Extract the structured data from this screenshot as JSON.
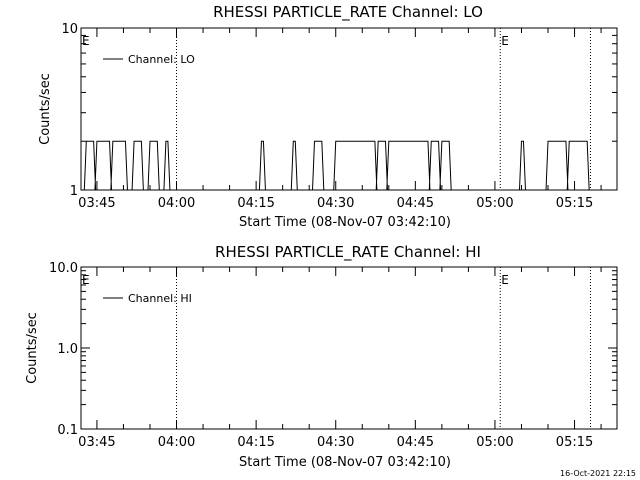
{
  "chart_data": [
    {
      "type": "line",
      "title": "RHESSI PARTICLE_RATE Channel: LO",
      "xlabel": "Start Time (08-Nov-07 03:42:10)",
      "ylabel": "Counts/sec",
      "yscale": "log",
      "ylim": [
        1,
        10
      ],
      "xlim": [
        "03:42",
        "05:23"
      ],
      "xticks": [
        "03:45",
        "04:00",
        "04:15",
        "04:30",
        "04:45",
        "05:00",
        "05:15"
      ],
      "yticks": [
        "1",
        "10"
      ],
      "legend": "top-left",
      "series": [
        {
          "name": "Channel: LO",
          "segments": [
            {
              "start": "03:43",
              "end": "03:44",
              "value": 2
            },
            {
              "start": "03:45",
              "end": "03:47",
              "value": 2
            },
            {
              "start": "03:48",
              "end": "03:50",
              "value": 2
            },
            {
              "start": "03:52",
              "end": "03:53",
              "value": 2
            },
            {
              "start": "03:55",
              "end": "03:56",
              "value": 2
            },
            {
              "start": "03:58",
              "end": "03:58",
              "value": 2
            },
            {
              "start": "04:16",
              "end": "04:16",
              "value": 2
            },
            {
              "start": "04:22",
              "end": "04:22",
              "value": 2
            },
            {
              "start": "04:26",
              "end": "04:27",
              "value": 2
            },
            {
              "start": "04:30",
              "end": "04:37",
              "value": 2
            },
            {
              "start": "04:38",
              "end": "04:39",
              "value": 2
            },
            {
              "start": "04:40",
              "end": "04:47",
              "value": 2
            },
            {
              "start": "04:48",
              "end": "04:49",
              "value": 2
            },
            {
              "start": "04:50",
              "end": "04:51",
              "value": 2
            },
            {
              "start": "05:05",
              "end": "05:05",
              "value": 2
            },
            {
              "start": "05:10",
              "end": "05:13",
              "value": 2
            },
            {
              "start": "05:14",
              "end": "05:17",
              "value": 2
            }
          ]
        }
      ],
      "vlines": [
        "04:00",
        "05:01",
        "05:18"
      ],
      "markers": [
        {
          "text": "E",
          "at": "03:42"
        },
        {
          "text": "E",
          "at": "05:01"
        }
      ]
    },
    {
      "type": "line",
      "title": "RHESSI PARTICLE_RATE Channel: HI",
      "xlabel": "Start Time (08-Nov-07 03:42:10)",
      "ylabel": "Counts/sec",
      "yscale": "log",
      "ylim": [
        0.1,
        10
      ],
      "xlim": [
        "03:42",
        "05:23"
      ],
      "xticks": [
        "03:45",
        "04:00",
        "04:15",
        "04:30",
        "04:45",
        "05:00",
        "05:15"
      ],
      "yticks": [
        "0.1",
        "1.0",
        "10.0"
      ],
      "legend": "top-left",
      "series": [
        {
          "name": "Channel: HI",
          "segments": []
        }
      ],
      "vlines": [
        "04:00",
        "05:01",
        "05:18"
      ],
      "markers": [
        {
          "text": "E",
          "at": "03:42"
        },
        {
          "text": "E",
          "at": "05:01"
        }
      ]
    }
  ],
  "footer": {
    "timestamp": "16-Oct-2021 22:15"
  }
}
